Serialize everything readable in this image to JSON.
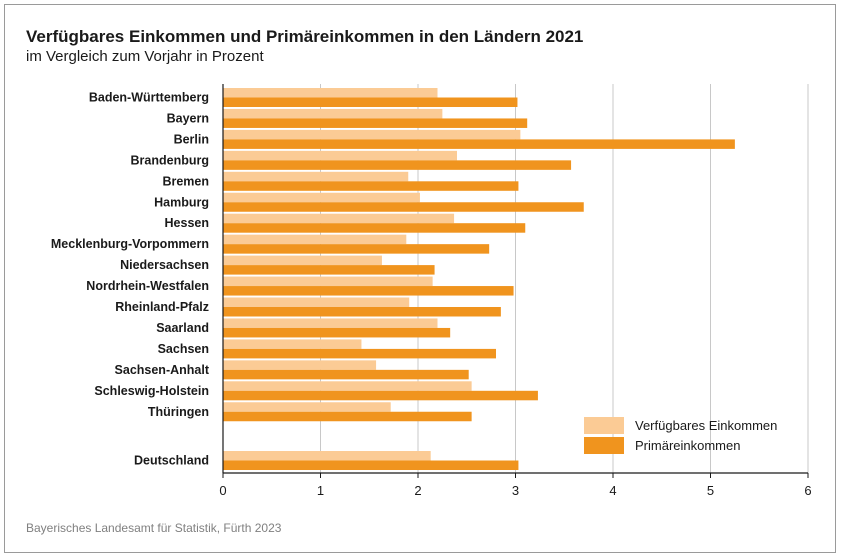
{
  "header": {
    "title": "Verfügbares Einkommen und Primäreinkommen in den Ländern 2021",
    "subtitle": "im Vergleich zum Vorjahr in Prozent"
  },
  "footer": {
    "source": "Bayerisches Landesamt für Statistik, Fürth 2023"
  },
  "colors": {
    "verfuegbar": "#fbcb95",
    "primaer": "#f0941e",
    "grid": "#c8c8c8",
    "axis": "#1a1a1a"
  },
  "chart_data": {
    "type": "bar",
    "orientation": "horizontal",
    "categories": [
      "Baden-Württemberg",
      "Bayern",
      "Berlin",
      "Brandenburg",
      "Bremen",
      "Hamburg",
      "Hessen",
      "Mecklenburg-Vorpommern",
      "Niedersachsen",
      "Nordrhein-Westfalen",
      "Rheinland-Pfalz",
      "Saarland",
      "Sachsen",
      "Sachsen-Anhalt",
      "Schleswig-Holstein",
      "Thüringen",
      "Deutschland"
    ],
    "series": [
      {
        "name": "Verfügbares Einkommen",
        "values": [
          2.2,
          2.25,
          3.05,
          2.4,
          1.9,
          2.02,
          2.37,
          1.88,
          1.63,
          2.15,
          1.91,
          2.2,
          1.42,
          1.57,
          2.55,
          1.72,
          2.13
        ]
      },
      {
        "name": "Primäreinkommen",
        "values": [
          3.02,
          3.12,
          5.25,
          3.57,
          3.03,
          3.7,
          3.1,
          2.73,
          2.17,
          2.98,
          2.85,
          2.33,
          2.8,
          2.52,
          3.23,
          2.55,
          3.03
        ]
      }
    ],
    "xlim": [
      0,
      6
    ],
    "xticks": [
      0,
      1,
      2,
      3,
      4,
      5,
      6
    ],
    "grid": true,
    "legend": "bottom-right"
  }
}
